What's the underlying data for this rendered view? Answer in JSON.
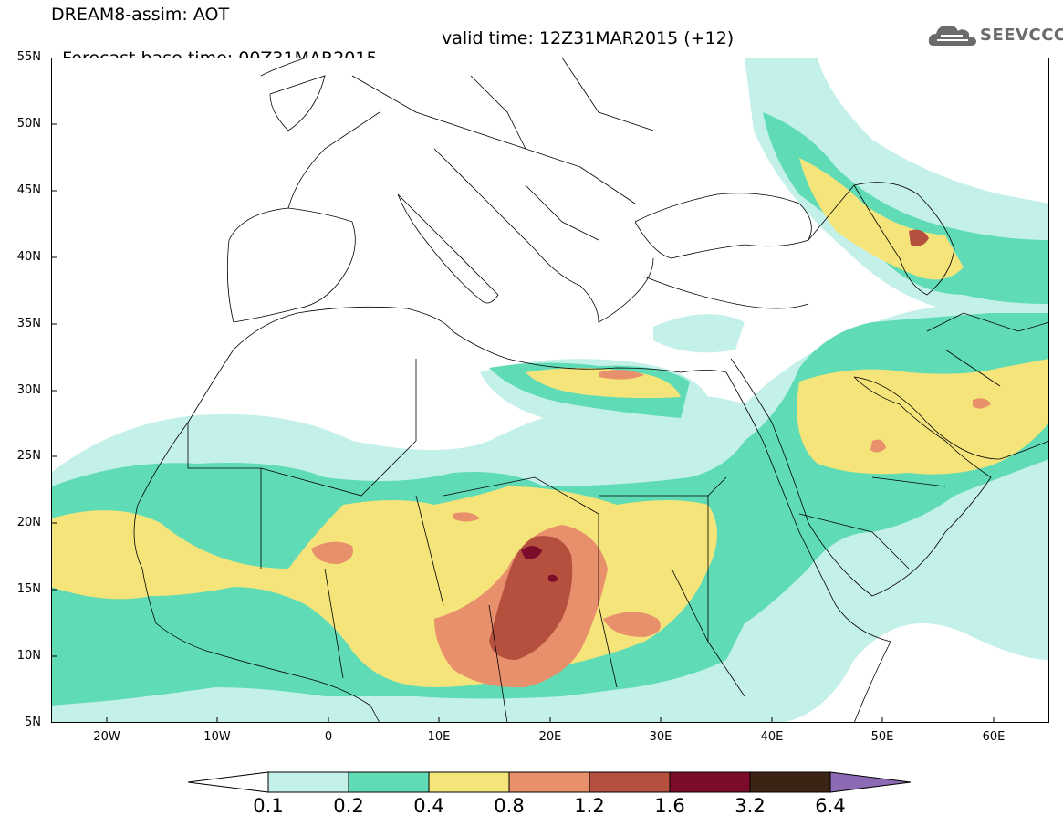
{
  "header": {
    "line1": "DREAM8-assim: AOT",
    "base_time": "Forecast base time: 00Z31MAR2015",
    "valid_time": "valid time: 12Z31MAR2015 (+12)"
  },
  "logo": {
    "text": "SEEVCCC",
    "icon": "cloud-icon",
    "color": "#6b6b6b"
  },
  "map": {
    "lon_range": [
      -25,
      65
    ],
    "lat_range": [
      5,
      55
    ],
    "lat_labels": [
      "55N",
      "50N",
      "45N",
      "40N",
      "35N",
      "30N",
      "25N",
      "20N",
      "15N",
      "10N",
      "5N"
    ],
    "lon_labels": [
      "20W",
      "10W",
      "0",
      "10E",
      "20E",
      "30E",
      "40E",
      "50E",
      "60E"
    ]
  },
  "colorbar": {
    "labels": [
      "0.1",
      "0.2",
      "0.4",
      "0.8",
      "1.2",
      "1.6",
      "3.2",
      "6.4"
    ],
    "colors": [
      "#ffffff",
      "#c4f0ea",
      "#5fdcb6",
      "#f5e47a",
      "#e88f6b",
      "#b5503f",
      "#7d0c2a",
      "#3c2414",
      "#8d6ab4"
    ]
  }
}
